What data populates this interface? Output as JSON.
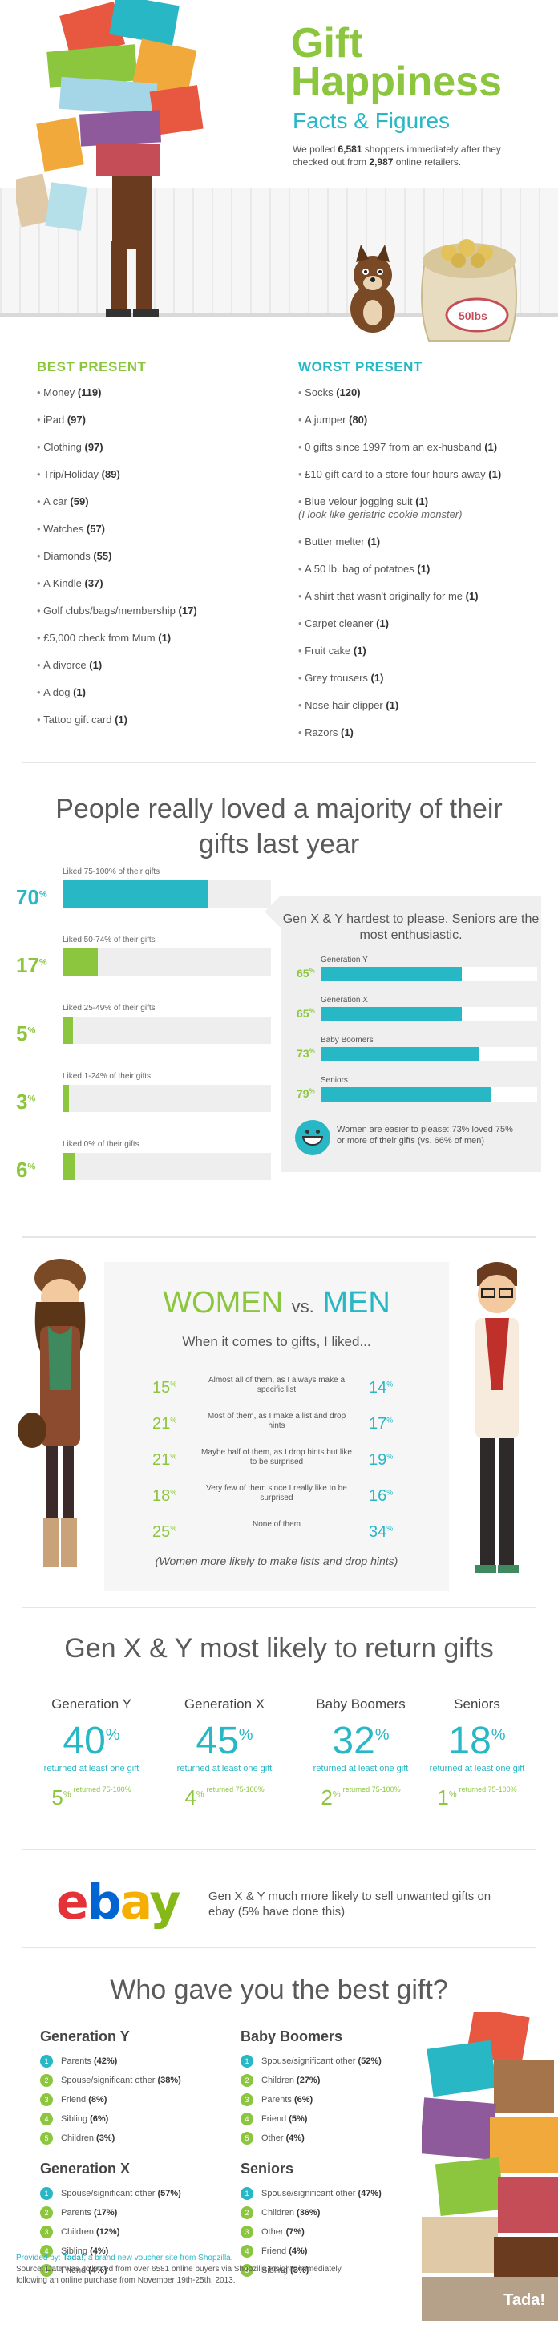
{
  "hero": {
    "title": "Gift Happiness",
    "subtitle": "Facts & Figures",
    "intro_pre": "We polled ",
    "intro_shoppers": "6,581",
    "intro_mid": " shoppers immediately after they checked out from ",
    "intro_retailers": "2,987",
    "intro_post": " online retailers.",
    "sack_label": "50lbs"
  },
  "best": {
    "heading": "BEST PRESENT",
    "items": [
      {
        "text": "Money",
        "count": "(119)"
      },
      {
        "text": "iPad",
        "count": "(97)"
      },
      {
        "text": "Clothing",
        "count": "(97)"
      },
      {
        "text": "Trip/Holiday",
        "count": "(89)"
      },
      {
        "text": "A car",
        "count": "(59)"
      },
      {
        "text": "Watches",
        "count": "(57)"
      },
      {
        "text": "Diamonds",
        "count": "(55)"
      },
      {
        "text": "A Kindle",
        "count": "(37)"
      },
      {
        "text": "Golf clubs/bags/membership",
        "count": "(17)"
      },
      {
        "text": "£5,000 check from Mum",
        "count": "(1)"
      },
      {
        "text": "A divorce",
        "count": "(1)"
      },
      {
        "text": "A dog",
        "count": "(1)"
      },
      {
        "text": "Tattoo gift card",
        "count": "(1)"
      }
    ]
  },
  "worst": {
    "heading": "WORST PRESENT",
    "items": [
      {
        "text": "Socks",
        "count": "(120)",
        "note": ""
      },
      {
        "text": "A jumper",
        "count": "(80)",
        "note": ""
      },
      {
        "text": "0 gifts since 1997 from an ex-husband",
        "count": "(1)",
        "note": ""
      },
      {
        "text": "£10 gift card to a store four hours away",
        "count": "(1)",
        "note": ""
      },
      {
        "text": "Blue velour jogging suit",
        "count": "(1)",
        "note": "(I look like geriatric cookie monster)"
      },
      {
        "text": "Butter melter",
        "count": "(1)",
        "note": ""
      },
      {
        "text": "A 50 lb. bag of potatoes",
        "count": "(1)",
        "note": ""
      },
      {
        "text": "A shirt that wasn't originally for me",
        "count": "(1)",
        "note": ""
      },
      {
        "text": "Carpet cleaner",
        "count": "(1)",
        "note": ""
      },
      {
        "text": "Fruit cake",
        "count": "(1)",
        "note": ""
      },
      {
        "text": "Grey trousers",
        "count": "(1)",
        "note": ""
      },
      {
        "text": "Nose hair clipper",
        "count": "(1)",
        "note": ""
      },
      {
        "text": "Razors",
        "count": "(1)",
        "note": ""
      }
    ]
  },
  "loved": {
    "title": "People really loved a majority of their gifts last year",
    "bars": [
      {
        "label": "Liked 75-100% of their gifts",
        "value": 70,
        "display": "70",
        "unit": "%"
      },
      {
        "label": "Liked 50-74% of their gifts",
        "value": 17,
        "display": "17",
        "unit": "%"
      },
      {
        "label": "Liked 25-49% of their gifts",
        "value": 5,
        "display": "5",
        "unit": "%"
      },
      {
        "label": "Liked 1-24% of their gifts",
        "value": 3,
        "display": "3",
        "unit": "%"
      },
      {
        "label": "Liked 0% of their gifts",
        "value": 6,
        "display": "6",
        "unit": "%"
      }
    ],
    "gen_heading": "Gen X & Y hardest to please. Seniors are the most enthusiastic.",
    "gens": [
      {
        "label": "Generation Y",
        "value": 65,
        "display": "65",
        "unit": "%"
      },
      {
        "label": "Generation X",
        "value": 65,
        "display": "65",
        "unit": "%"
      },
      {
        "label": "Baby Boomers",
        "value": 73,
        "display": "73",
        "unit": "%"
      },
      {
        "label": "Seniors",
        "value": 79,
        "display": "79",
        "unit": "%"
      }
    ],
    "women_note": "Women are easier to please: 73% loved 75% or more of their gifts (vs. 66% of men)"
  },
  "wvm": {
    "women": "WOMEN",
    "vs": "vs.",
    "men": "MEN",
    "subtitle": "When it comes to gifts, I liked...",
    "rows": [
      {
        "women": "15",
        "text": "Almost all of them, as I always make a specific list",
        "men": "14"
      },
      {
        "women": "21",
        "text": "Most of them, as I make a list and drop hints",
        "men": "17"
      },
      {
        "women": "21",
        "text": "Maybe half of them, as I drop hints but like to be surprised",
        "men": "19"
      },
      {
        "women": "18",
        "text": "Very few of them since I really like to be surprised",
        "men": "16"
      },
      {
        "women": "25",
        "text": "None of them",
        "men": "34"
      }
    ],
    "unit": "%",
    "note": "(Women more likely to make lists and drop hints)"
  },
  "returns": {
    "title": "Gen X & Y most likely to return gifts",
    "caption": "returned at least one gift",
    "small_caption": "returned 75-100%",
    "unit": "%",
    "groups": [
      {
        "name": "Generation Y",
        "big": "40",
        "small": "5"
      },
      {
        "name": "Generation X",
        "big": "45",
        "small": "4"
      },
      {
        "name": "Baby Boomers",
        "big": "32",
        "small": "2"
      },
      {
        "name": "Seniors",
        "big": "18",
        "small": "1"
      }
    ]
  },
  "ebay": {
    "logo_e": "e",
    "logo_b": "b",
    "logo_a": "a",
    "logo_y": "y",
    "text": "Gen X & Y much more likely to sell unwanted gifts on ebay (5% have done this)"
  },
  "who": {
    "title": "Who gave you the best gift?",
    "groups": [
      {
        "name": "Generation Y",
        "items": [
          {
            "n": "1",
            "text": "Parents",
            "pct": "(42%)"
          },
          {
            "n": "2",
            "text": "Spouse/significant other",
            "pct": "(38%)"
          },
          {
            "n": "3",
            "text": "Friend",
            "pct": "(8%)"
          },
          {
            "n": "4",
            "text": "Sibling",
            "pct": "(6%)"
          },
          {
            "n": "5",
            "text": "Children",
            "pct": "(3%)"
          }
        ]
      },
      {
        "name": "Baby Boomers",
        "items": [
          {
            "n": "1",
            "text": "Spouse/significant other",
            "pct": "(52%)"
          },
          {
            "n": "2",
            "text": "Children",
            "pct": "(27%)"
          },
          {
            "n": "3",
            "text": "Parents",
            "pct": "(6%)"
          },
          {
            "n": "4",
            "text": "Friend",
            "pct": "(5%)"
          },
          {
            "n": "5",
            "text": "Other",
            "pct": "(4%)"
          }
        ]
      },
      {
        "name": "Generation X",
        "items": [
          {
            "n": "1",
            "text": "Spouse/significant other",
            "pct": "(57%)"
          },
          {
            "n": "2",
            "text": "Parents",
            "pct": "(17%)"
          },
          {
            "n": "3",
            "text": "Children",
            "pct": "(12%)"
          },
          {
            "n": "4",
            "text": "Sibling",
            "pct": "(4%)"
          },
          {
            "n": "5",
            "text": "Friend",
            "pct": "(4%)"
          }
        ]
      },
      {
        "name": "Seniors",
        "items": [
          {
            "n": "1",
            "text": "Spouse/significant other",
            "pct": "(47%)"
          },
          {
            "n": "2",
            "text": "Children",
            "pct": "(36%)"
          },
          {
            "n": "3",
            "text": "Other",
            "pct": "(7%)"
          },
          {
            "n": "4",
            "text": "Friend",
            "pct": "(4%)"
          },
          {
            "n": "5",
            "text": "Sibling",
            "pct": "(3%)"
          }
        ]
      }
    ],
    "provided_pre": "Provided by: ",
    "provided_brand": "Tada!",
    "provided_post": ", a brand new voucher site from Shopzilla.",
    "source": "Source: Data was collected from over 6581 online buyers via Shopzilla Insights immediately following an online purchase from November 19th-25th, 2013.",
    "logo": "Tada!"
  },
  "colors": {
    "green": "#8cc63f",
    "teal": "#28b7c5",
    "grey": "#eeeeee"
  }
}
